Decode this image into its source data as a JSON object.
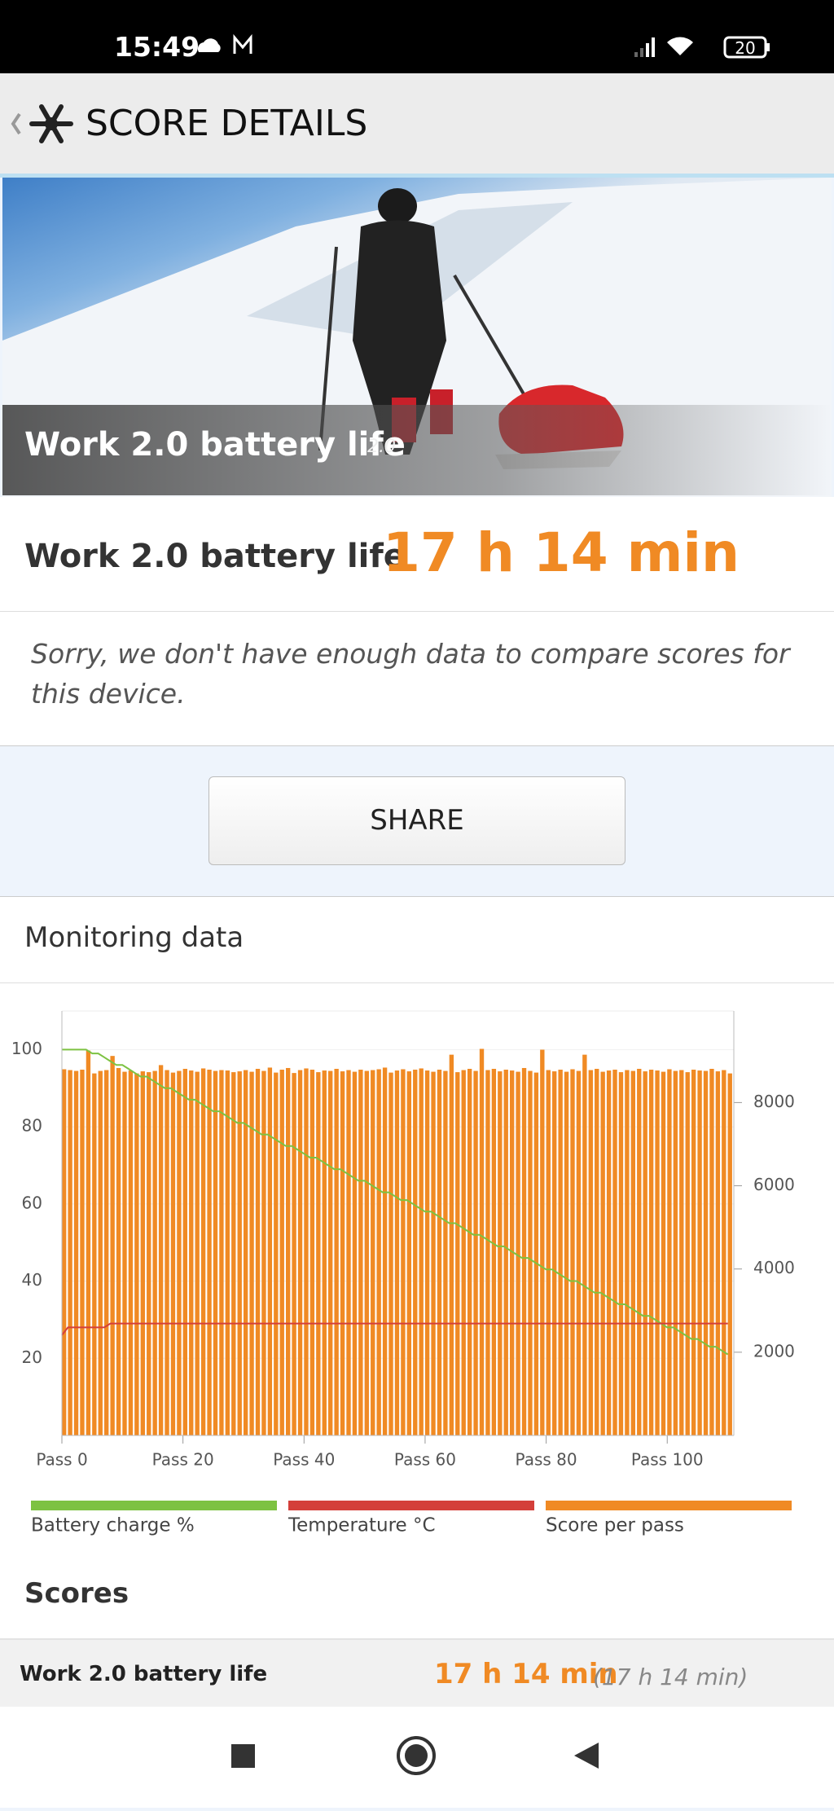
{
  "status_bar": {
    "time": "15:49",
    "battery": "20"
  },
  "header": {
    "title": "SCORE DETAILS"
  },
  "hero": {
    "title": "Work 2.0 battery life",
    "version": "2.0"
  },
  "result": {
    "label": "Work 2.0 battery life",
    "value": "17 h 14 min"
  },
  "note": "Sorry, we don't have enough data to compare scores for this device.",
  "share_button": "SHARE",
  "monitoring": {
    "title": "Monitoring data"
  },
  "chart_data": {
    "type": "bar-line",
    "x": [
      0,
      1,
      2,
      3,
      4,
      5,
      6,
      7,
      8,
      9,
      10,
      11,
      12,
      13,
      14,
      15,
      16,
      17,
      18,
      19,
      20,
      21,
      22,
      23,
      24,
      25,
      26,
      27,
      28,
      29,
      30,
      31,
      32,
      33,
      34,
      35,
      36,
      37,
      38,
      39,
      40,
      41,
      42,
      43,
      44,
      45,
      46,
      47,
      48,
      49,
      50,
      51,
      52,
      53,
      54,
      55,
      56,
      57,
      58,
      59,
      60,
      61,
      62,
      63,
      64,
      65,
      66,
      67,
      68,
      69,
      70,
      71,
      72,
      73,
      74,
      75,
      76,
      77,
      78,
      79,
      80,
      81,
      82,
      83,
      84,
      85,
      86,
      87,
      88,
      89,
      90,
      91,
      92,
      93,
      94,
      95,
      96,
      97,
      98,
      99,
      100,
      101,
      102,
      103,
      104,
      105,
      106,
      107,
      108,
      109,
      110
    ],
    "series": [
      {
        "name": "Battery charge %",
        "color": "#7dc242",
        "kind": "line",
        "values": [
          100,
          100,
          100,
          100,
          100,
          99,
          99,
          98,
          97,
          96,
          96,
          95,
          94,
          93,
          93,
          92,
          91,
          90,
          90,
          89,
          88,
          87,
          87,
          86,
          85,
          84,
          84,
          83,
          82,
          81,
          81,
          80,
          79,
          78,
          78,
          77,
          76,
          75,
          75,
          74,
          73,
          72,
          72,
          71,
          70,
          69,
          69,
          68,
          67,
          66,
          66,
          65,
          64,
          63,
          63,
          62,
          61,
          61,
          60,
          59,
          58,
          58,
          57,
          56,
          55,
          55,
          54,
          53,
          52,
          52,
          51,
          50,
          49,
          49,
          48,
          47,
          46,
          46,
          45,
          44,
          43,
          43,
          42,
          41,
          40,
          40,
          39,
          38,
          37,
          37,
          36,
          35,
          34,
          34,
          33,
          32,
          31,
          31,
          30,
          29,
          28,
          28,
          27,
          26,
          25,
          25,
          24,
          23,
          23,
          22,
          21
        ]
      },
      {
        "name": "Temperature °C",
        "color": "#d43f3a",
        "kind": "line",
        "values": [
          26,
          28,
          28,
          28,
          28,
          28,
          28,
          28,
          29,
          29,
          29,
          29,
          29,
          29,
          29,
          29,
          29,
          29,
          29,
          29,
          29,
          29,
          29,
          29,
          29,
          29,
          29,
          29,
          29,
          29,
          29,
          29,
          29,
          29,
          29,
          29,
          29,
          29,
          29,
          29,
          29,
          29,
          29,
          29,
          29,
          29,
          29,
          29,
          29,
          29,
          29,
          29,
          29,
          29,
          29,
          29,
          29,
          29,
          29,
          29,
          29,
          29,
          29,
          29,
          29,
          29,
          29,
          29,
          29,
          29,
          29,
          29,
          29,
          29,
          29,
          29,
          29,
          29,
          29,
          29,
          29,
          29,
          29,
          29,
          29,
          29,
          29,
          29,
          29,
          29,
          29,
          29,
          29,
          29,
          29,
          29,
          29,
          29,
          29,
          29,
          29,
          29,
          29,
          29,
          29,
          29,
          29,
          29,
          29,
          29,
          29
        ]
      },
      {
        "name": "Score per pass",
        "color": "#f08a24",
        "kind": "bar",
        "axis": "y2",
        "values": [
          8800,
          8780,
          8760,
          8790,
          9250,
          8700,
          8760,
          8780,
          9120,
          8830,
          8740,
          8770,
          8700,
          8750,
          8730,
          8760,
          8900,
          8780,
          8720,
          8760,
          8810,
          8770,
          8740,
          8820,
          8790,
          8760,
          8780,
          8770,
          8730,
          8750,
          8780,
          8740,
          8810,
          8760,
          8840,
          8720,
          8790,
          8830,
          8710,
          8780,
          8820,
          8790,
          8730,
          8770,
          8760,
          8810,
          8750,
          8780,
          8740,
          8790,
          8760,
          8780,
          8800,
          8840,
          8720,
          8770,
          8800,
          8750,
          8790,
          8820,
          8770,
          8740,
          8790,
          8760,
          9150,
          8730,
          8780,
          8810,
          8760,
          9290,
          8780,
          8810,
          8750,
          8790,
          8770,
          8740,
          8830,
          8760,
          8720,
          9270,
          8780,
          8750,
          8790,
          8740,
          8800,
          8760,
          9150,
          8780,
          8810,
          8740,
          8770,
          8790,
          8730,
          8780,
          8760,
          8810,
          8750,
          8790,
          8770,
          8740,
          8800,
          8760,
          8780,
          8730,
          8790,
          8770,
          8760,
          8810,
          8750,
          8780,
          8700
        ]
      }
    ],
    "xlim": [
      0,
      111
    ],
    "xticks": [
      {
        "value": 0,
        "label": "Pass 0"
      },
      {
        "value": 20,
        "label": "Pass 20"
      },
      {
        "value": 40,
        "label": "Pass 40"
      },
      {
        "value": 60,
        "label": "Pass 60"
      },
      {
        "value": 80,
        "label": "Pass 80"
      },
      {
        "value": 100,
        "label": "Pass 100"
      }
    ],
    "ylim": [
      0,
      110
    ],
    "yticks": [
      20,
      40,
      60,
      80,
      100
    ],
    "y2lim": [
      0,
      10200
    ],
    "y2ticks": [
      2000,
      4000,
      6000,
      8000
    ],
    "grid": true,
    "legend": "bottom"
  },
  "scores": {
    "title": "Scores",
    "rows": [
      {
        "name": "Work 2.0 battery life",
        "value": "17 h 14 min",
        "detail": "(17 h 14 min)"
      }
    ]
  }
}
